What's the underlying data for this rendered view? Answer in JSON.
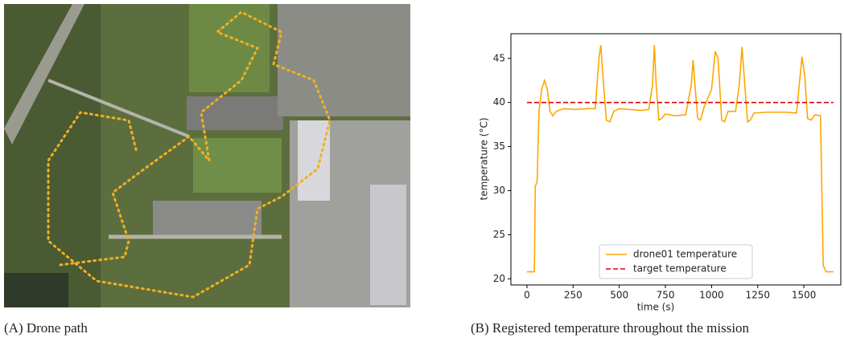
{
  "chart_data": {
    "type": "line",
    "xlabel": "time (s)",
    "ylabel": "temperature (°C)",
    "xlim": [
      -87,
      1700
    ],
    "ylim": [
      19.3,
      47.8
    ],
    "xticks": [
      0,
      250,
      500,
      750,
      1000,
      1250,
      1500
    ],
    "yticks": [
      20,
      25,
      30,
      35,
      40,
      45
    ],
    "legend": "lower center",
    "series": [
      {
        "name": "drone01 temperature",
        "color": "#ffa500",
        "style": "solid",
        "x": [
          0,
          40,
          45,
          55,
          65,
          80,
          95,
          110,
          125,
          140,
          160,
          200,
          260,
          330,
          370,
          390,
          400,
          415,
          430,
          450,
          470,
          500,
          560,
          620,
          660,
          680,
          690,
          700,
          715,
          730,
          750,
          800,
          860,
          890,
          900,
          910,
          925,
          940,
          960,
          1000,
          1020,
          1035,
          1055,
          1070,
          1090,
          1110,
          1130,
          1150,
          1165,
          1180,
          1195,
          1210,
          1230,
          1300,
          1400,
          1460,
          1475,
          1490,
          1505,
          1520,
          1540,
          1560,
          1590,
          1605,
          1620,
          1660
        ],
        "values": [
          20.8,
          20.8,
          30.5,
          31,
          39,
          41.5,
          42.5,
          41.5,
          39,
          38.5,
          39,
          39.3,
          39.2,
          39.3,
          39.3,
          45,
          46.5,
          42,
          38,
          37.8,
          39,
          39.3,
          39.2,
          39.1,
          39.2,
          42,
          46.5,
          42,
          38,
          38.2,
          38.7,
          38.5,
          38.6,
          42,
          44.8,
          42,
          38.2,
          38,
          39.5,
          41.5,
          45.8,
          45,
          38,
          37.8,
          39,
          39,
          39,
          42,
          46.3,
          42,
          37.8,
          38,
          38.8,
          38.9,
          38.9,
          38.8,
          42,
          45.2,
          43,
          38.2,
          38,
          38.6,
          38.5,
          21.5,
          20.8,
          20.8
        ]
      },
      {
        "name": "target temperature",
        "color": "#e00000",
        "style": "dashed",
        "x": [
          0,
          1660
        ],
        "values": [
          40,
          40
        ]
      }
    ]
  },
  "captions": [
    "(A) Drone path",
    "(B) Registered temperature throughout the mission"
  ]
}
